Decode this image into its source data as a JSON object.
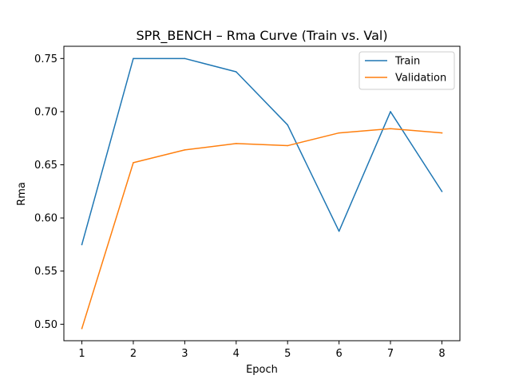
{
  "chart_data": {
    "type": "line",
    "title": "SPR_BENCH – Rma Curve (Train vs. Val)",
    "xlabel": "Epoch",
    "ylabel": "Rma",
    "x": [
      1,
      2,
      3,
      4,
      5,
      6,
      7,
      8
    ],
    "x_ticks": [
      "1",
      "2",
      "3",
      "4",
      "5",
      "6",
      "7",
      "8"
    ],
    "y_ticks": [
      "0.50",
      "0.55",
      "0.60",
      "0.65",
      "0.70",
      "0.75"
    ],
    "y_tick_values": [
      0.5,
      0.55,
      0.6,
      0.65,
      0.7,
      0.75
    ],
    "xlim": [
      0.65,
      8.35
    ],
    "ylim": [
      0.4845,
      0.7615
    ],
    "grid": false,
    "legend_position": "top-right",
    "series": [
      {
        "name": "Train",
        "color": "#1f77b4",
        "values": [
          0.575,
          0.75,
          0.75,
          0.7375,
          0.6875,
          0.5875,
          0.7,
          0.625
        ]
      },
      {
        "name": "Validation",
        "color": "#ff7f0e",
        "values": [
          0.496,
          0.652,
          0.664,
          0.67,
          0.668,
          0.68,
          0.684,
          0.68
        ]
      }
    ]
  }
}
